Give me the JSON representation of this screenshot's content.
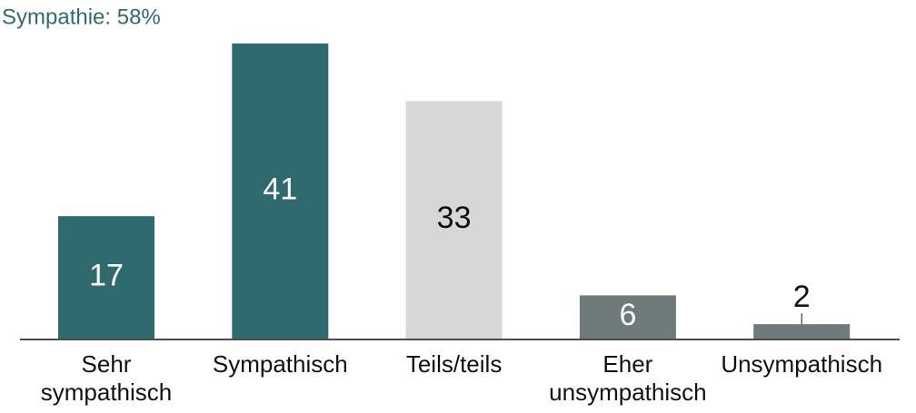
{
  "chart_data": {
    "type": "bar",
    "title": "Sympathie: 58%",
    "categories": [
      "Sehr\nsympathisch",
      "Sympathisch",
      "Teils/teils",
      "Eher\nunsympathisch",
      "Unsympathisch"
    ],
    "values": [
      17,
      41,
      33,
      6,
      2
    ],
    "colors": [
      "#2f6b6e",
      "#2f6b6e",
      "#d6d7d9",
      "#6f7b7a",
      "#6f7b7a"
    ]
  }
}
